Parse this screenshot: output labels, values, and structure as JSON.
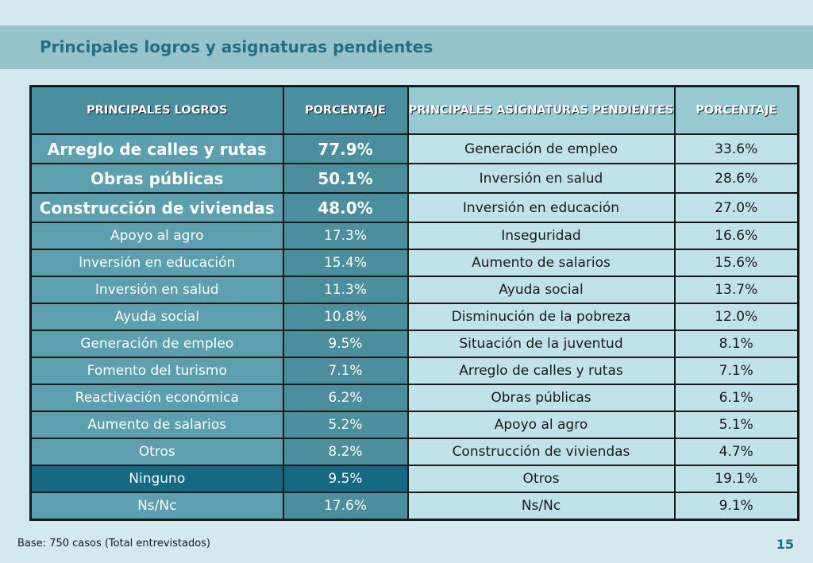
{
  "title": "Principales logros y asignaturas pendientes",
  "table": {
    "headers": {
      "left_label": "PRINCIPALES LOGROS",
      "left_value": "PORCENTAJE",
      "right_label": "PRINCIPALES ASIGNATURAS PENDIENTES",
      "right_value": "PORCENTAJE"
    },
    "rows": [
      {
        "left_label": "Arreglo de calles y rutas",
        "left_value": "77.9%",
        "right_label": "Generación de empleo",
        "right_value": "33.6%"
      },
      {
        "left_label": "Obras públicas",
        "left_value": "50.1%",
        "right_label": "Inversión en salud",
        "right_value": "28.6%"
      },
      {
        "left_label": "Construcción de viviendas",
        "left_value": "48.0%",
        "right_label": "Inversión en educación",
        "right_value": "27.0%"
      },
      {
        "left_label": "Apoyo al agro",
        "left_value": "17.3%",
        "right_label": "Inseguridad",
        "right_value": "16.6%"
      },
      {
        "left_label": "Inversión en educación",
        "left_value": "15.4%",
        "right_label": "Aumento de salarios",
        "right_value": "15.6%"
      },
      {
        "left_label": "Inversión en salud",
        "left_value": "11.3%",
        "right_label": "Ayuda social",
        "right_value": "13.7%"
      },
      {
        "left_label": "Ayuda social",
        "left_value": "10.8%",
        "right_label": "Disminución de la pobreza",
        "right_value": "12.0%"
      },
      {
        "left_label": "Generación de empleo",
        "left_value": "9.5%",
        "right_label": "Situación de la juventud",
        "right_value": "8.1%"
      },
      {
        "left_label": "Fomento del turismo",
        "left_value": "7.1%",
        "right_label": "Arreglo de calles y rutas",
        "right_value": "7.1%"
      },
      {
        "left_label": "Reactivación económica",
        "left_value": "6.2%",
        "right_label": "Obras públicas",
        "right_value": "6.1%"
      },
      {
        "left_label": "Aumento de salarios",
        "left_value": "5.2%",
        "right_label": "Apoyo al agro",
        "right_value": "5.1%"
      },
      {
        "left_label": "Otros",
        "left_value": "8.2%",
        "right_label": "Construcción de viviendas",
        "right_value": "4.7%"
      },
      {
        "left_label": "Ninguno",
        "left_value": "9.5%",
        "right_label": "Otros",
        "right_value": "19.1%"
      },
      {
        "left_label": "Ns/Nc",
        "left_value": "17.6%",
        "right_label": "Ns/Nc",
        "right_value": "9.1%"
      }
    ]
  },
  "footer": {
    "base_note": "Base: 750 casos (Total entrevistados)",
    "page_number": "15"
  },
  "colors": {
    "background": "#d3e9ed",
    "title_band": "#95c4cc",
    "title_text": "#1f6f86",
    "left_cells": "#5c9fae",
    "left_values": "#4b8e9d",
    "right_cells": "#bfe3e8",
    "highlight_row": "#136a82"
  }
}
